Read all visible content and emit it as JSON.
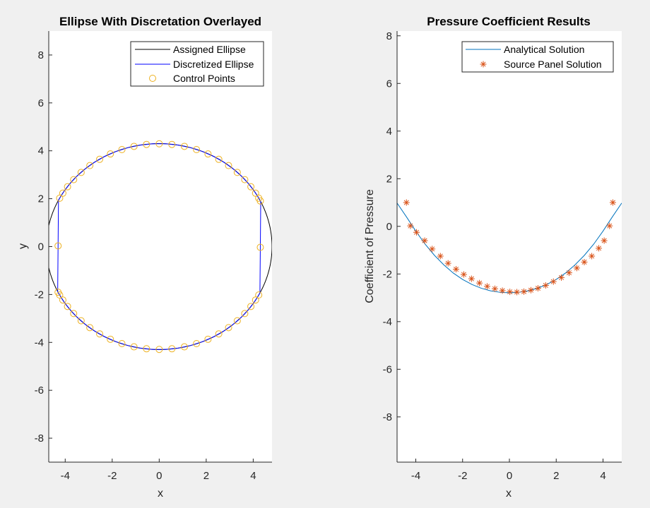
{
  "chart_data": [
    {
      "type": "line",
      "title": "Ellipse With Discretation Overlayed",
      "xlabel": "x",
      "ylabel": "y",
      "xlim": [
        -4.7,
        4.8
      ],
      "ylim": [
        -9,
        9
      ],
      "xticks": [
        -4,
        -2,
        0,
        2,
        4
      ],
      "yticks": [
        -8,
        -6,
        -4,
        -2,
        0,
        2,
        4,
        6,
        8
      ],
      "grid": false,
      "legend_location": "top-right",
      "ellipse": {
        "center": [
          0,
          0
        ],
        "semi_axis_x": 4.8,
        "semi_axis_y": 4.3
      },
      "control_point_count": 50,
      "series": [
        {
          "name": "Assigned Ellipse",
          "color": "#000000",
          "marker": "none",
          "style": "line"
        },
        {
          "name": "Discretized Ellipse",
          "color": "#0000ff",
          "marker": "none",
          "style": "line"
        },
        {
          "name": "Control Points",
          "color": "#edb120",
          "marker": "circle",
          "style": "markers"
        }
      ]
    },
    {
      "type": "line",
      "title": "Pressure Coefficient Results",
      "xlabel": "x",
      "ylabel": "Coefficient of Pressure",
      "xlim": [
        -4.8,
        4.8
      ],
      "ylim": [
        -9.9,
        8.2
      ],
      "xticks": [
        -4,
        -2,
        0,
        2,
        4
      ],
      "yticks": [
        -8,
        -6,
        -4,
        -2,
        0,
        2,
        4,
        6,
        8
      ],
      "grid": false,
      "legend_location": "top-right",
      "series": [
        {
          "name": "Analytical Solution",
          "color": "#0072bd",
          "marker": "none",
          "x": [
            -4.8,
            -4.4,
            -4.0,
            -3.6,
            -3.2,
            -2.8,
            -2.4,
            -2.0,
            -1.6,
            -1.2,
            -0.8,
            -0.4,
            0.0,
            0.4,
            0.8,
            1.2,
            1.6,
            2.0,
            2.4,
            2.8,
            3.2,
            3.6,
            4.0,
            4.4,
            4.8
          ],
          "y": [
            0.98,
            0.4,
            -0.2,
            -0.75,
            -1.22,
            -1.62,
            -1.96,
            -2.23,
            -2.44,
            -2.6,
            -2.71,
            -2.77,
            -2.79,
            -2.77,
            -2.71,
            -2.6,
            -2.44,
            -2.23,
            -1.96,
            -1.62,
            -1.22,
            -0.75,
            -0.2,
            0.4,
            0.98
          ]
        },
        {
          "name": "Source Panel Solution",
          "color": "#d95319",
          "marker": "asterisk",
          "x": [
            -4.4,
            -4.23,
            -3.97,
            -3.62,
            -3.3,
            -2.95,
            -2.62,
            -2.28,
            -1.95,
            -1.62,
            -1.28,
            -0.95,
            -0.62,
            -0.3,
            0.02,
            0.32,
            0.62,
            0.92,
            1.22,
            1.55,
            1.88,
            2.22,
            2.55,
            2.88,
            3.2,
            3.52,
            3.82,
            4.05,
            4.28,
            4.42
          ],
          "y": [
            1.0,
            0.02,
            -0.25,
            -0.6,
            -0.95,
            -1.25,
            -1.55,
            -1.8,
            -2.02,
            -2.2,
            -2.38,
            -2.52,
            -2.62,
            -2.7,
            -2.75,
            -2.76,
            -2.74,
            -2.68,
            -2.6,
            -2.48,
            -2.32,
            -2.15,
            -1.95,
            -1.75,
            -1.5,
            -1.25,
            -0.92,
            -0.6,
            0.02,
            1.0
          ]
        }
      ]
    }
  ]
}
